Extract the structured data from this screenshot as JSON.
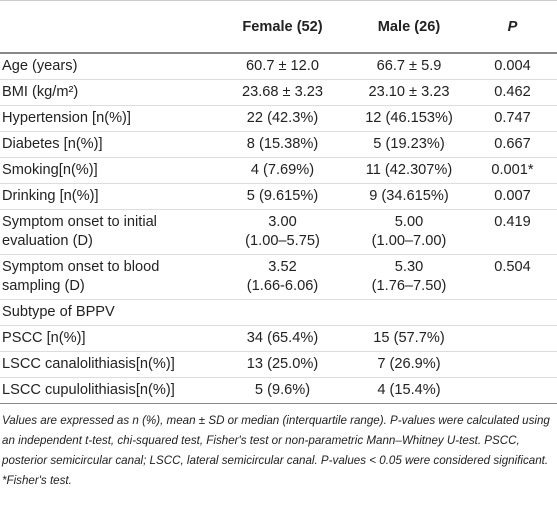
{
  "table": {
    "header": [
      "Female (52)",
      "Male (26)",
      "P"
    ],
    "rows": [
      [
        "Age (years)",
        "60.7 ± 12.0",
        "66.7 ± 5.9",
        "0.004"
      ],
      [
        "BMI (kg/m²)",
        "23.68 ± 3.23",
        "23.10 ± 3.23",
        "0.462"
      ],
      [
        "Hypertension [n(%)]",
        "22 (42.3%)",
        "12 (46.153%)",
        "0.747"
      ],
      [
        "Diabetes [n(%)]",
        "8 (15.38%)",
        "5 (19.23%)",
        "0.667"
      ],
      [
        "Smoking[n(%)]",
        "4 (7.69%)",
        "11 (42.307%)",
        "0.001*"
      ],
      [
        "Drinking [n(%)]",
        "5 (9.615%)",
        "9 (34.615%)",
        "0.007"
      ],
      [
        "Symptom onset to initial evaluation (D)",
        "3.00\n(1.00–5.75)",
        "5.00\n(1.00–7.00)",
        "0.419"
      ],
      [
        "Symptom onset to blood sampling (D)",
        "3.52\n(1.66-6.06)",
        "5.30\n(1.76–7.50)",
        "0.504"
      ],
      [
        "Subtype of BPPV"
      ],
      [
        "PSCC [n(%)]",
        "34 (65.4%)",
        "15 (57.7%)"
      ],
      [
        "LSCC canalolithiasis[n(%)]",
        "13 (25.0%)",
        "7 (26.9%)"
      ],
      [
        "LSCC cupulolithiasis[n(%)]",
        "5 (9.6%)",
        "4 (15.4%)"
      ]
    ],
    "footnote": "Values are expressed as n (%), mean ± SD or median (interquartile range). P-values were calculated using an independent t-test, chi-squared test, Fisher's test or non-parametric Mann–Whitney U-test. PSCC, posterior semicircular canal; LSCC, lateral semicircular canal. P-values < 0.05 were considered significant. *Fisher's test."
  }
}
